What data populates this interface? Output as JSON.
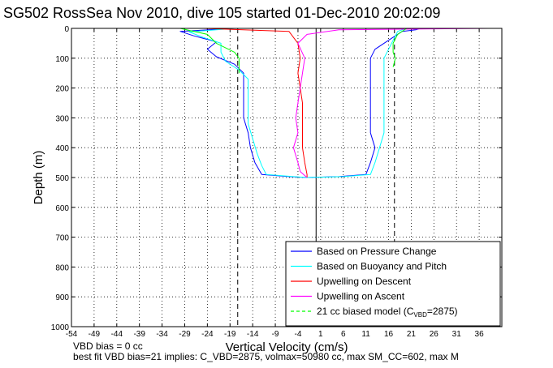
{
  "title": "SG502 RossSea Nov 2010, dive 105 started 01-Dec-2010 20:02:09",
  "footer": {
    "line1": "VBD bias = 0 cc",
    "line2": "best fit VBD bias=21 implies: C_VBD=2875, volmax=50980 cc, max SM_CC=602, max M"
  },
  "chart_data": {
    "type": "line",
    "xlabel": "Vertical Velocity (cm/s)",
    "ylabel": "Depth (m)",
    "xlim": [
      -54,
      41
    ],
    "ylim": [
      1000,
      0
    ],
    "y_reversed": true,
    "xticks": [
      -54,
      -49,
      -44,
      -39,
      -34,
      -29,
      -24,
      -19,
      -14,
      -9,
      -4,
      1,
      6,
      11,
      16,
      21,
      26,
      31,
      36
    ],
    "yticks": [
      0,
      100,
      200,
      300,
      400,
      500,
      600,
      700,
      800,
      900,
      1000
    ],
    "grid": true,
    "legend_position": "bottom-right",
    "legend": [
      {
        "label": "Based on Pressure Change",
        "color": "#0000ff",
        "style": "solid"
      },
      {
        "label": "Based on Buoyancy and Pitch",
        "color": "#00ffff",
        "style": "solid"
      },
      {
        "label": "Upwelling on Descent",
        "color": "#ff0000",
        "style": "solid"
      },
      {
        "label": "Upwelling on Ascent",
        "color": "#ff00ff",
        "style": "solid"
      },
      {
        "label": "21 cc biased model (C",
        "sub": "VBD",
        "suffix": "=2875)",
        "color": "#00ff00",
        "style": "dashed"
      }
    ],
    "reference_lines": {
      "dashed_x": [
        -17.3,
        17.3
      ],
      "solid_x": [
        0
      ]
    },
    "series": [
      {
        "color": "#0000ff",
        "points": [
          [
            -18,
            0
          ],
          [
            -30,
            10
          ],
          [
            -27,
            25
          ],
          [
            -22,
            45
          ],
          [
            -24,
            70
          ],
          [
            -22,
            95
          ],
          [
            -18,
            120
          ],
          [
            -16,
            150
          ],
          [
            -16,
            200
          ],
          [
            -16,
            250
          ],
          [
            -16,
            300
          ],
          [
            -15,
            350
          ],
          [
            -14.5,
            400
          ],
          [
            -13.5,
            450
          ],
          [
            -12,
            490
          ],
          [
            -6,
            497
          ],
          [
            -2,
            500
          ]
        ]
      },
      {
        "color": "#0000ff",
        "points": [
          [
            -2,
            500
          ],
          [
            5,
            497
          ],
          [
            11,
            490
          ],
          [
            12,
            450
          ],
          [
            13,
            400
          ],
          [
            12,
            350
          ],
          [
            12,
            300
          ],
          [
            12,
            250
          ],
          [
            12,
            200
          ],
          [
            12,
            150
          ],
          [
            12,
            100
          ],
          [
            13,
            70
          ],
          [
            16,
            40
          ],
          [
            19,
            10
          ],
          [
            22,
            5
          ],
          [
            23,
            0
          ]
        ]
      },
      {
        "color": "#00ffff",
        "points": [
          [
            -18,
            0
          ],
          [
            -28,
            12
          ],
          [
            -25,
            30
          ],
          [
            -21,
            50
          ],
          [
            -21,
            80
          ],
          [
            -20,
            110
          ],
          [
            -17,
            140
          ],
          [
            -15,
            170
          ],
          [
            -15,
            220
          ],
          [
            -15,
            270
          ],
          [
            -15,
            320
          ],
          [
            -14,
            370
          ],
          [
            -13,
            420
          ],
          [
            -12,
            460
          ],
          [
            -11,
            490
          ],
          [
            -5,
            497
          ],
          [
            -2,
            500
          ]
        ]
      },
      {
        "color": "#00ffff",
        "points": [
          [
            -2,
            500
          ],
          [
            6,
            497
          ],
          [
            12,
            490
          ],
          [
            13,
            450
          ],
          [
            14,
            400
          ],
          [
            15,
            350
          ],
          [
            15,
            300
          ],
          [
            15,
            250
          ],
          [
            15,
            200
          ],
          [
            15,
            150
          ],
          [
            15,
            100
          ],
          [
            16,
            70
          ],
          [
            17,
            40
          ],
          [
            18,
            10
          ],
          [
            20,
            0
          ]
        ]
      },
      {
        "color": "#ff0000",
        "points": [
          [
            -25,
            0
          ],
          [
            -6,
            10
          ],
          [
            -4,
            50
          ],
          [
            -3.5,
            100
          ],
          [
            -4,
            150
          ],
          [
            -3.5,
            200
          ],
          [
            -3,
            250
          ],
          [
            -3,
            300
          ],
          [
            -3,
            350
          ],
          [
            -3,
            400
          ],
          [
            -2.5,
            450
          ],
          [
            -2,
            490
          ],
          [
            -2,
            500
          ]
        ]
      },
      {
        "color": "#ff00ff",
        "points": [
          [
            -2,
            500
          ],
          [
            -3.5,
            480
          ],
          [
            -4,
            450
          ],
          [
            -5,
            400
          ],
          [
            -4,
            350
          ],
          [
            -4.5,
            300
          ],
          [
            -4,
            250
          ],
          [
            -3.5,
            200
          ],
          [
            -3,
            150
          ],
          [
            -2.5,
            100
          ],
          [
            -4,
            50
          ],
          [
            -2,
            20
          ],
          [
            5,
            5
          ],
          [
            38,
            0
          ]
        ]
      },
      {
        "color": "#00ff00",
        "points": [
          [
            -30,
            0
          ],
          [
            -24,
            20
          ],
          [
            -22,
            50
          ],
          [
            -18,
            80
          ],
          [
            -17,
            100
          ],
          [
            -17,
            150
          ]
        ]
      },
      {
        "color": "#00ff00",
        "points": [
          [
            20,
            0
          ],
          [
            18,
            20
          ],
          [
            17,
            50
          ],
          [
            17,
            80
          ],
          [
            17.5,
            100
          ],
          [
            17,
            130
          ]
        ]
      }
    ]
  }
}
